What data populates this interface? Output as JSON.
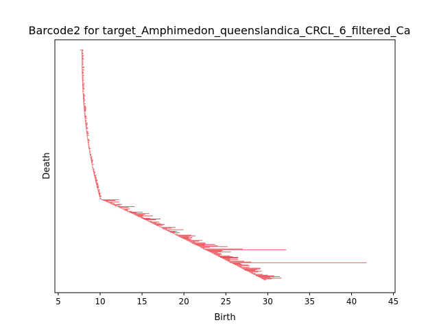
{
  "chart_data": {
    "type": "barcode",
    "title": "Barcode2 for target_Amphimedon_queenslandica_CRCL_6_filtered_Ca",
    "xlabel": "Birth",
    "ylabel": "Death",
    "xlim": [
      4.6,
      45.2
    ],
    "xticks": [
      5,
      10,
      15,
      20,
      25,
      30,
      35,
      40,
      45
    ],
    "bar_color": "#e8474f",
    "bar_count": 300,
    "bars": [
      {
        "birth": 7.6,
        "death": 8.0
      },
      {
        "birth": 13.0,
        "death": 13.3
      },
      {
        "birth": 14.8,
        "death": 15.2
      },
      {
        "birth": 17.5,
        "death": 18.0
      },
      {
        "birth": 19.4,
        "death": 20.6
      },
      {
        "birth": 21.0,
        "death": 22.6
      },
      {
        "birth": 21.8,
        "death": 25.2
      },
      {
        "birth": 22.3,
        "death": 27.0
      },
      {
        "birth": 22.5,
        "death": 32.2
      },
      {
        "birth": 24.0,
        "death": 25.5
      },
      {
        "birth": 25.5,
        "death": 41.8
      },
      {
        "birth": 27.3,
        "death": 28.5
      },
      {
        "birth": 28.5,
        "death": 30.0
      },
      {
        "birth": 29.3,
        "death": 30.5
      }
    ]
  }
}
